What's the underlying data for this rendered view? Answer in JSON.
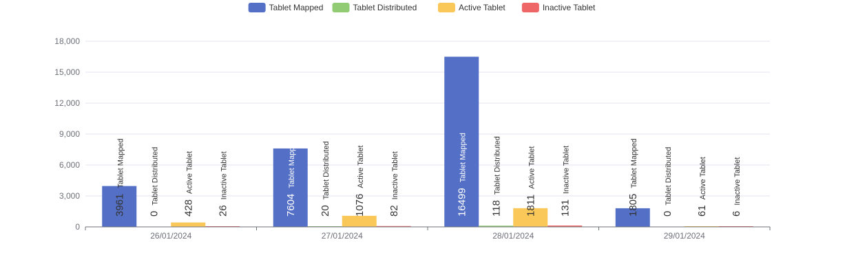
{
  "chart_data": {
    "type": "bar",
    "title": "",
    "xlabel": "",
    "ylabel": "",
    "ylim": [
      0,
      18000
    ],
    "yticks": [
      0,
      3000,
      6000,
      9000,
      12000,
      15000,
      18000
    ],
    "ytick_labels": [
      "0",
      "3,000",
      "6,000",
      "9,000",
      "12,000",
      "15,000",
      "18,000"
    ],
    "categories": [
      "26/01/2024",
      "27/01/2024",
      "28/01/2024",
      "29/01/2024"
    ],
    "legend_position": "top-center",
    "grid": true,
    "series": [
      {
        "name": "Tablet Mapped",
        "color": "#5470c6",
        "values": [
          3961,
          7604,
          16499,
          1805
        ]
      },
      {
        "name": "Tablet Distributed",
        "color": "#91cc75",
        "values": [
          0,
          20,
          118,
          0
        ]
      },
      {
        "name": "Active Tablet",
        "color": "#fac858",
        "values": [
          428,
          1076,
          1811,
          61
        ]
      },
      {
        "name": "Inactive Tablet",
        "color": "#ee6666",
        "values": [
          26,
          82,
          131,
          6
        ]
      }
    ]
  }
}
